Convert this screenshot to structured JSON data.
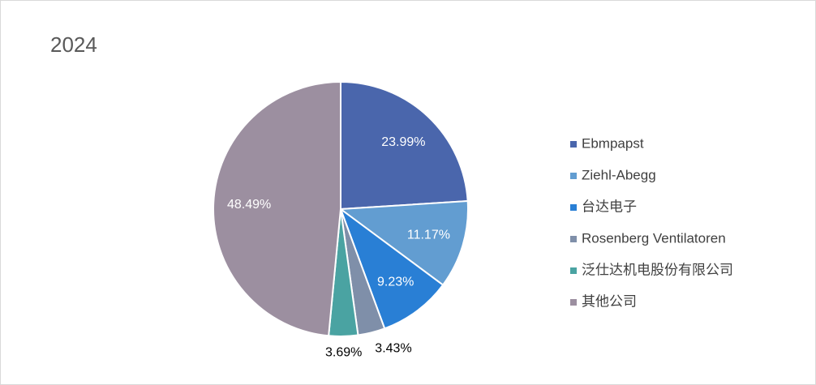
{
  "chart_data": {
    "type": "pie",
    "title": "2024",
    "categories": [
      "Ebmpapst",
      "Ziehl-Abegg",
      "台达电子",
      "Rosenberg Ventilatoren",
      "泛仕达机电股份有限公司",
      "其他公司"
    ],
    "values": [
      23.99,
      11.17,
      9.23,
      3.43,
      3.69,
      48.49
    ],
    "value_labels": [
      "23.99%",
      "11.17%",
      "9.23%",
      "3.43%",
      "3.69%",
      "48.49%"
    ],
    "colors": [
      "#4a66ac",
      "#629dd1",
      "#297fd5",
      "#7f8fa9",
      "#4aa3a2",
      "#9c8fa0"
    ],
    "legend": "right"
  }
}
